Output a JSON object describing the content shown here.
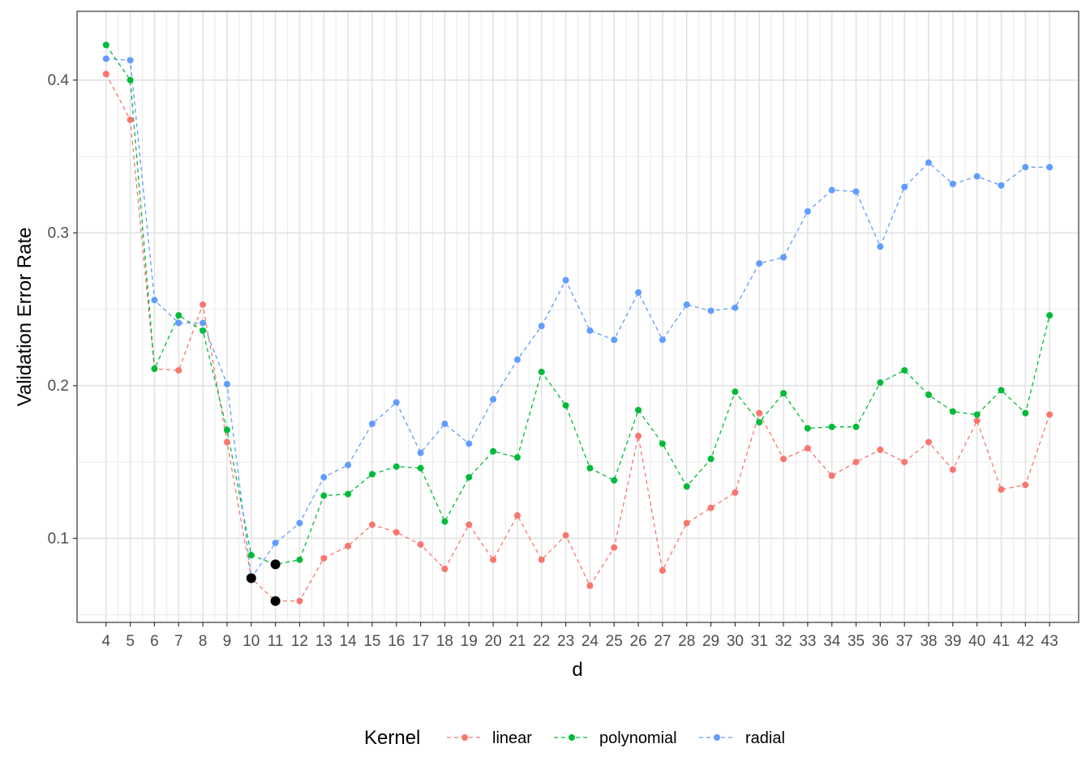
{
  "chart_data": {
    "type": "line",
    "xlabel": "d",
    "ylabel": "Validation Error Rate",
    "x": [
      4,
      5,
      6,
      7,
      8,
      9,
      10,
      11,
      12,
      13,
      14,
      15,
      16,
      17,
      18,
      19,
      20,
      21,
      22,
      23,
      24,
      25,
      26,
      27,
      28,
      29,
      30,
      31,
      32,
      33,
      34,
      35,
      36,
      37,
      38,
      39,
      40,
      41,
      42,
      43
    ],
    "xlim": [
      2.8,
      44.2
    ],
    "ylim": [
      0.045,
      0.445
    ],
    "yticks": [
      0.1,
      0.2,
      0.3,
      0.4
    ],
    "ytick_labels": [
      "0.1",
      "0.2",
      "0.3",
      "0.4"
    ],
    "grid": true,
    "legend": {
      "position": "bottom",
      "title": "Kernel"
    },
    "series": [
      {
        "name": "linear",
        "color": "#F8766D",
        "line_style": "dashed",
        "values": [
          0.404,
          0.374,
          0.211,
          0.21,
          0.253,
          0.163,
          0.074,
          0.059,
          0.059,
          0.087,
          0.095,
          0.109,
          0.104,
          0.096,
          0.08,
          0.109,
          0.086,
          0.115,
          0.086,
          0.102,
          0.069,
          0.094,
          0.167,
          0.079,
          0.11,
          0.12,
          0.13,
          0.182,
          0.152,
          0.159,
          0.141,
          0.15,
          0.158,
          0.15,
          0.163,
          0.145,
          0.177,
          0.132,
          0.135,
          0.181
        ]
      },
      {
        "name": "polynomial",
        "color": "#00BA38",
        "line_style": "dashed",
        "values": [
          0.423,
          0.4,
          0.211,
          0.246,
          0.236,
          0.171,
          0.089,
          0.083,
          0.086,
          0.128,
          0.129,
          0.142,
          0.147,
          0.146,
          0.111,
          0.14,
          0.157,
          0.153,
          0.209,
          0.187,
          0.146,
          0.138,
          0.184,
          0.162,
          0.134,
          0.152,
          0.196,
          0.176,
          0.195,
          0.172,
          0.173,
          0.173,
          0.202,
          0.21,
          0.194,
          0.183,
          0.181,
          0.197,
          0.182,
          0.246
        ]
      },
      {
        "name": "radial",
        "color": "#619CFF",
        "line_style": "dashed",
        "values": [
          0.414,
          0.413,
          0.256,
          0.241,
          0.241,
          0.201,
          0.074,
          0.097,
          0.11,
          0.14,
          0.148,
          0.175,
          0.189,
          0.156,
          0.175,
          0.162,
          0.191,
          0.217,
          0.239,
          0.269,
          0.236,
          0.23,
          0.261,
          0.23,
          0.253,
          0.249,
          0.251,
          0.28,
          0.284,
          0.314,
          0.328,
          0.327,
          0.291,
          0.33,
          0.346,
          0.332,
          0.337,
          0.331,
          0.343,
          0.343
        ]
      }
    ],
    "highlighted_points": [
      {
        "x": 10,
        "y": 0.074,
        "color": "#000000"
      },
      {
        "x": 11,
        "y": 0.059,
        "color": "#000000"
      },
      {
        "x": 11,
        "y": 0.083,
        "color": "#000000"
      }
    ]
  }
}
